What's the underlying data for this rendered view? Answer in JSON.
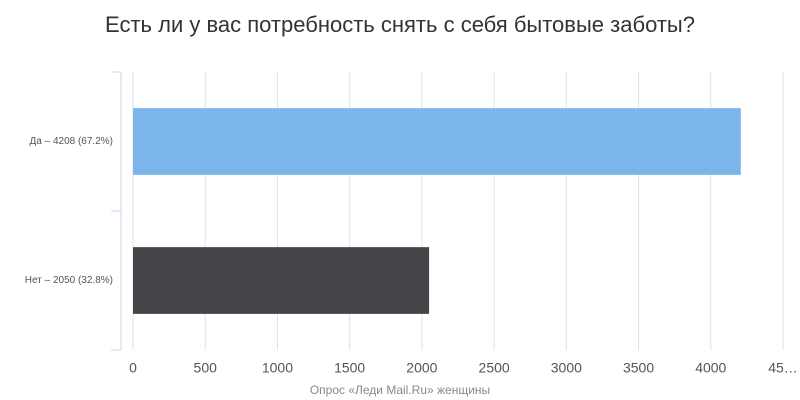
{
  "chart_data": {
    "type": "hbar",
    "title": "Есть ли у вас потребность снять с себя бытовые заботы?",
    "x_label": "Опрос «Леди Mail.Ru» женщины",
    "categories": [
      "Да – 4208 (67.2%)",
      "Нет – 2050 (32.8%)"
    ],
    "values": [
      4208,
      2050
    ],
    "colors": [
      "#7cb5ec",
      "#434348"
    ],
    "xlim": [
      0,
      4500
    ],
    "xticks": [
      0,
      500,
      1000,
      1500,
      2000,
      2500,
      3000,
      3500,
      4000,
      {
        "value": 4500,
        "label": "45…"
      }
    ],
    "grid": true
  }
}
